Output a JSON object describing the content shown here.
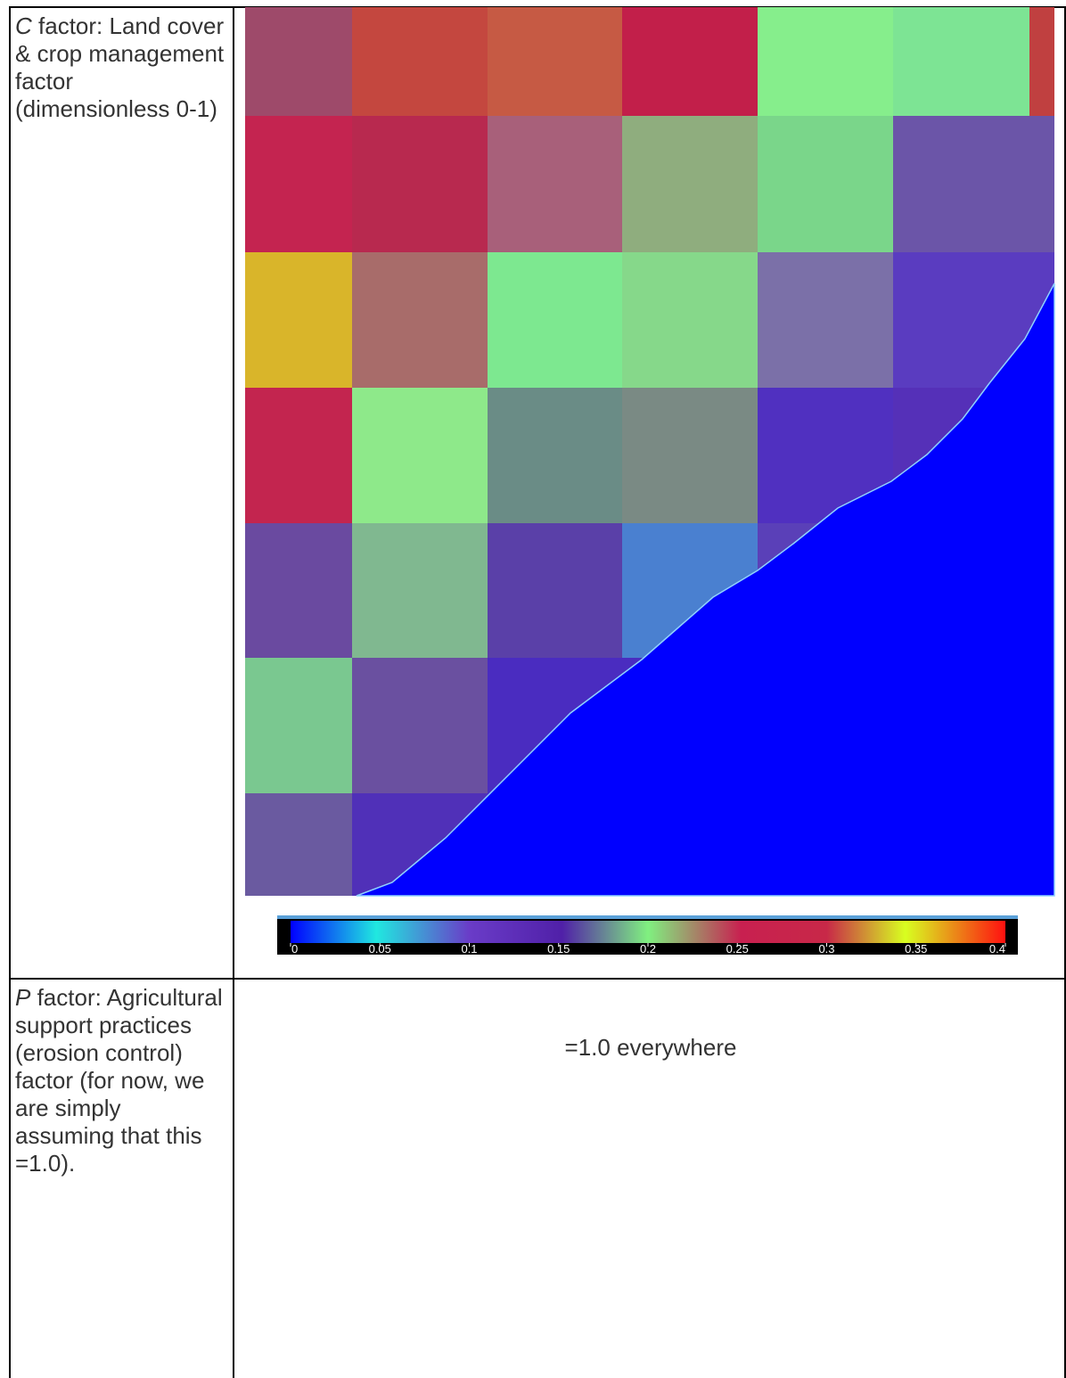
{
  "table": {
    "rows": [
      {
        "variable": "C",
        "text": "factor: Land cover & crop management factor (dimensionless 0-1)",
        "colorbar": {
          "lim": [
            0,
            0.4
          ],
          "ticks": [
            0,
            0.05,
            0.1,
            0.15,
            0.2,
            0.25,
            0.3,
            0.35,
            0.4
          ]
        }
      },
      {
        "variable": "P",
        "text": "factor: Agricultural support practices (erosion control) factor (for now, we are simply assuming that this =1.0).",
        "content": "=1.0 everywhere"
      }
    ]
  }
}
